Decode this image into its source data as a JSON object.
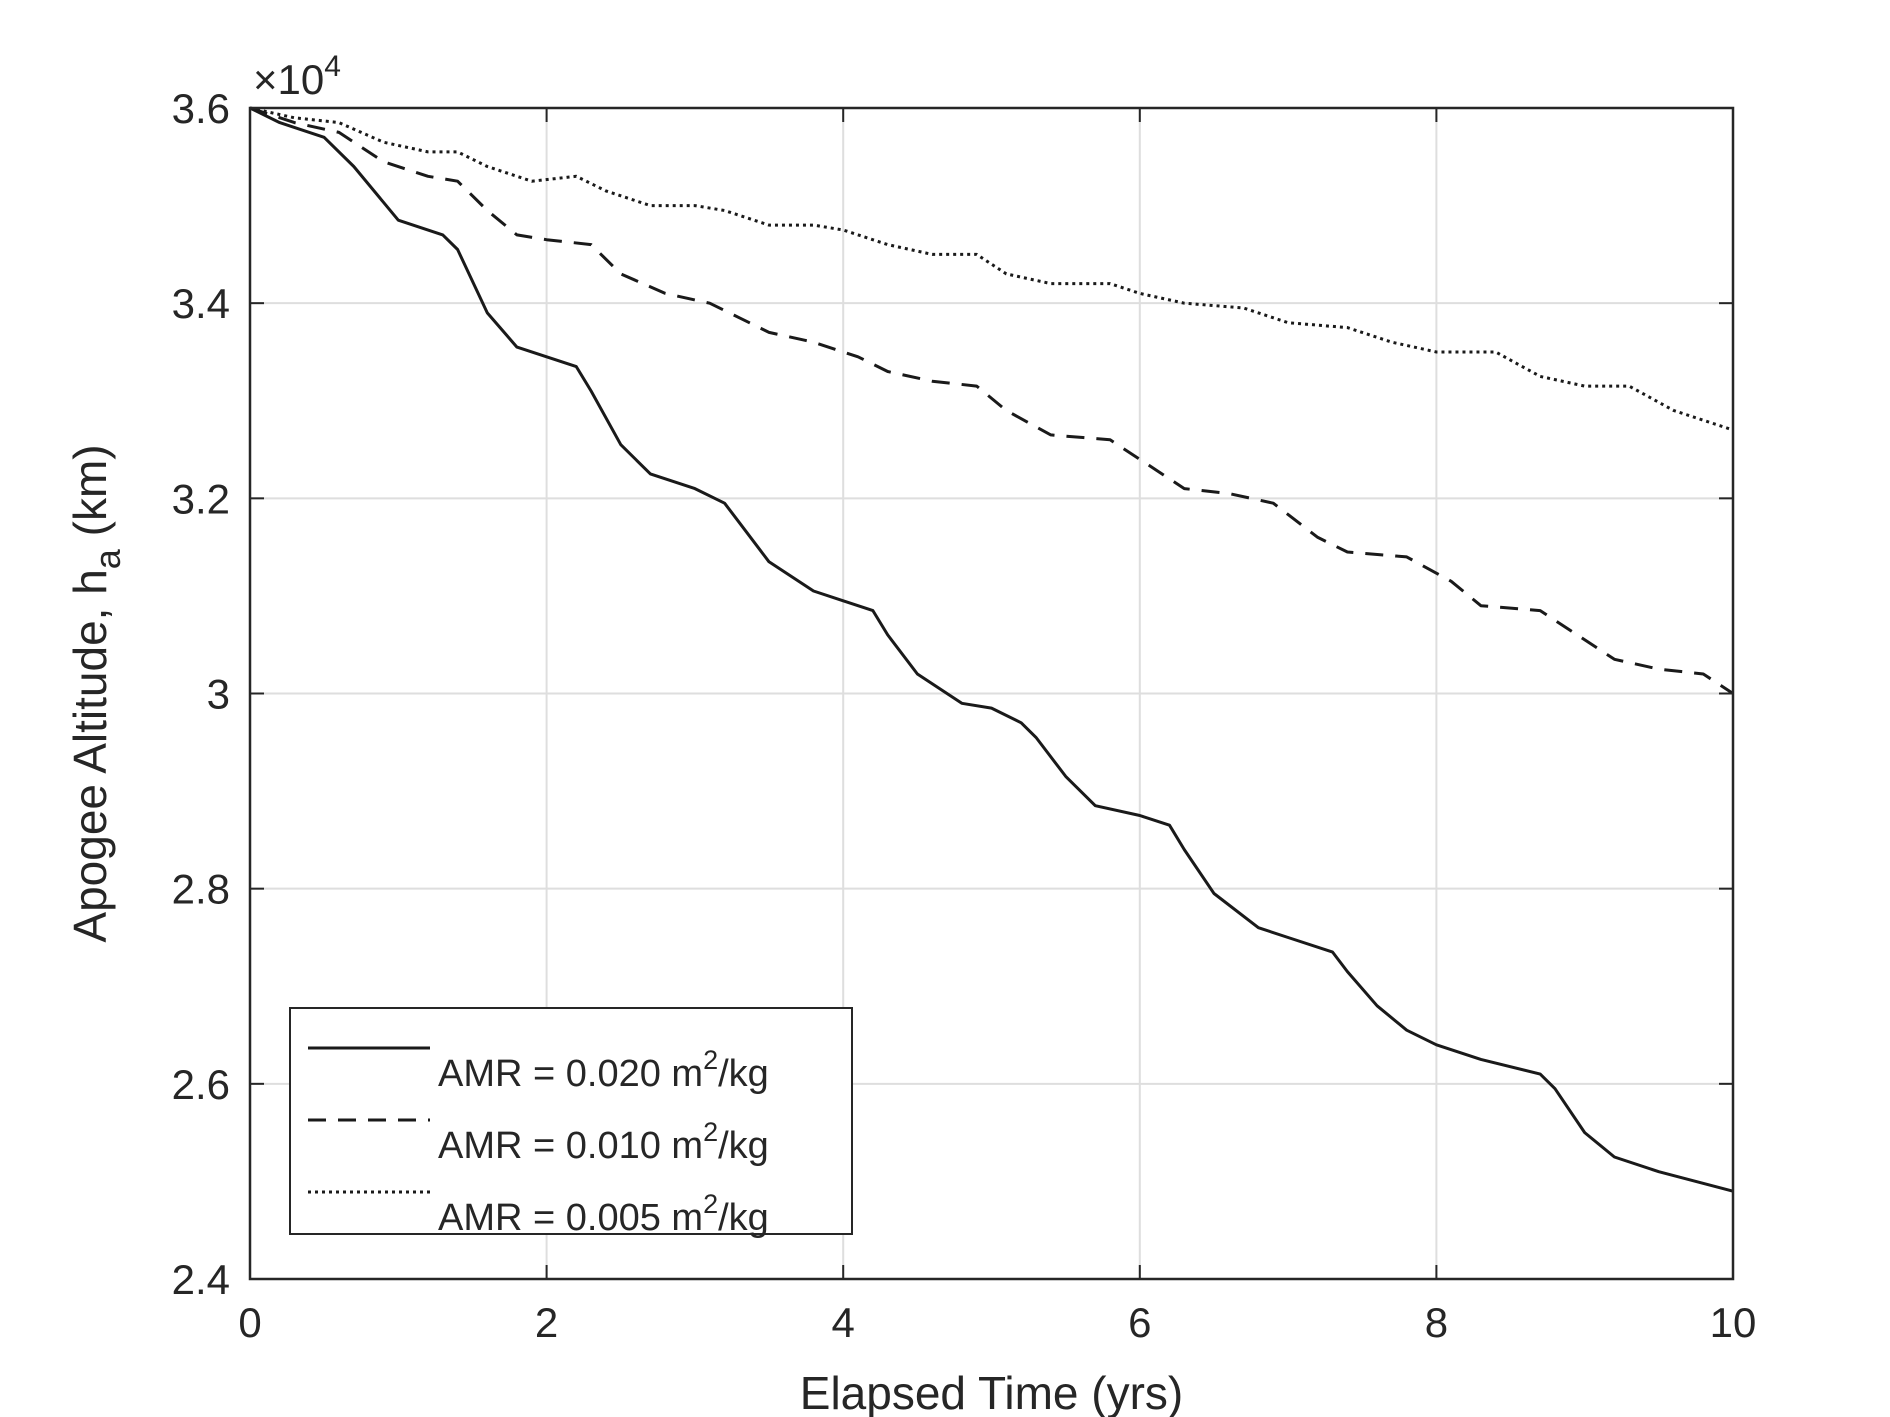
{
  "chart_data": {
    "type": "line",
    "xlabel": "Elapsed Time (yrs)",
    "ylabel_main": "Apogee Altitude, h",
    "ylabel_sub": "a",
    "ylabel_unit": " (km)",
    "y_exponent_base": "×10",
    "y_exponent_power": "4",
    "xlim": [
      0,
      10
    ],
    "ylim": [
      24000,
      36000
    ],
    "xticks": [
      0,
      2,
      4,
      6,
      8,
      10
    ],
    "xtick_labels": [
      "0",
      "2",
      "4",
      "6",
      "8",
      "10"
    ],
    "yticks": [
      24000,
      26000,
      28000,
      30000,
      32000,
      34000,
      36000
    ],
    "ytick_labels": [
      "2.4",
      "2.6",
      "2.8",
      "3",
      "3.2",
      "3.4",
      "3.6"
    ],
    "grid": true,
    "legend_position": "bottom-left",
    "series": [
      {
        "name": "AMR = 0.020 m²/kg",
        "name_prefix": "AMR = 0.020 m",
        "name_sup": "2",
        "name_suffix": "/kg",
        "line_style": "solid",
        "x": [
          0,
          0.2,
          0.5,
          0.7,
          1.0,
          1.3,
          1.4,
          1.6,
          1.8,
          2.0,
          2.2,
          2.3,
          2.5,
          2.7,
          3.0,
          3.2,
          3.3,
          3.5,
          3.8,
          4.0,
          4.2,
          4.3,
          4.5,
          4.8,
          5.0,
          5.2,
          5.3,
          5.5,
          5.7,
          6.0,
          6.2,
          6.3,
          6.5,
          6.8,
          7.0,
          7.3,
          7.4,
          7.6,
          7.8,
          8.0,
          8.3,
          8.7,
          8.8,
          9.0,
          9.2,
          9.5,
          10.0
        ],
        "y": [
          36000,
          35850,
          35700,
          35400,
          34850,
          34700,
          34550,
          33900,
          33550,
          33450,
          33350,
          33100,
          32550,
          32250,
          32100,
          31950,
          31750,
          31350,
          31050,
          30950,
          30850,
          30600,
          30200,
          29900,
          29850,
          29700,
          29550,
          29150,
          28850,
          28750,
          28650,
          28400,
          27950,
          27600,
          27500,
          27350,
          27150,
          26800,
          26550,
          26400,
          26250,
          26100,
          25950,
          25500,
          25250,
          25100,
          24900
        ]
      },
      {
        "name": "AMR = 0.010 m²/kg",
        "name_prefix": "AMR = 0.010 m",
        "name_sup": "2",
        "name_suffix": "/kg",
        "line_style": "dashed",
        "x": [
          0,
          0.3,
          0.6,
          0.9,
          1.2,
          1.4,
          1.6,
          1.8,
          2.0,
          2.3,
          2.5,
          2.8,
          3.1,
          3.3,
          3.5,
          3.8,
          4.1,
          4.3,
          4.6,
          4.9,
          5.1,
          5.4,
          5.8,
          6.0,
          6.3,
          6.6,
          6.9,
          7.2,
          7.4,
          7.8,
          8.1,
          8.3,
          8.7,
          8.9,
          9.2,
          9.5,
          9.8,
          10.0
        ],
        "y": [
          36000,
          35850,
          35750,
          35450,
          35300,
          35250,
          34950,
          34700,
          34650,
          34600,
          34300,
          34100,
          34000,
          33850,
          33700,
          33600,
          33450,
          33300,
          33200,
          33150,
          32900,
          32650,
          32600,
          32400,
          32100,
          32050,
          31950,
          31600,
          31450,
          31400,
          31150,
          30900,
          30850,
          30650,
          30350,
          30250,
          30200,
          30000
        ]
      },
      {
        "name": "AMR = 0.005 m²/kg",
        "name_prefix": "AMR = 0.005 m",
        "name_sup": "2",
        "name_suffix": "/kg",
        "line_style": "dotted",
        "x": [
          0,
          0.3,
          0.6,
          0.9,
          1.2,
          1.4,
          1.6,
          1.9,
          2.2,
          2.4,
          2.7,
          3.0,
          3.2,
          3.5,
          3.8,
          4.0,
          4.3,
          4.6,
          4.9,
          5.1,
          5.4,
          5.8,
          6.0,
          6.3,
          6.7,
          7.0,
          7.4,
          7.7,
          8.0,
          8.4,
          8.7,
          9.0,
          9.3,
          9.6,
          10.0
        ],
        "y": [
          36000,
          35900,
          35850,
          35650,
          35550,
          35550,
          35400,
          35250,
          35300,
          35150,
          35000,
          35000,
          34950,
          34800,
          34800,
          34750,
          34600,
          34500,
          34500,
          34300,
          34200,
          34200,
          34100,
          34000,
          33950,
          33800,
          33750,
          33600,
          33500,
          33500,
          33250,
          33150,
          33150,
          32900,
          32700
        ]
      }
    ]
  }
}
